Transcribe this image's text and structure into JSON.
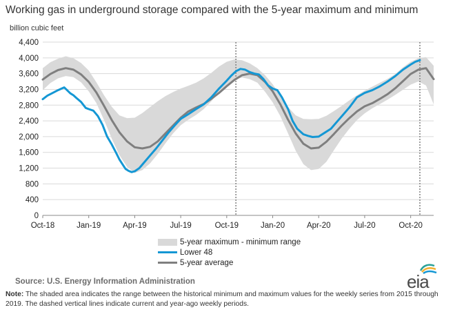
{
  "title": "Working gas in underground  storage compared with the 5-year maximum and minimum",
  "unit_label": "billion cubic feet",
  "source": "Source:  U.S. Energy Information Administration",
  "note_label": "Note:",
  "note_text": " The shaded area indicates the range between the historical minimum and maximum values for the weekly series from 2015 through 2019. The dashed vertical lines indicate current and year-ago weekly periods.",
  "logo_text": "eia",
  "colors": {
    "range": "#d9d9d9",
    "lower48": "#1497d4",
    "average": "#7f7f7f",
    "grid": "#d9d9d9",
    "dashed": "#7f7f7f"
  },
  "chart_data": {
    "type": "area",
    "ylabel": "billion cubic feet",
    "ylim": [
      0,
      4400
    ],
    "yticks": [
      0,
      400,
      800,
      1200,
      1600,
      2000,
      2400,
      2800,
      3200,
      3600,
      4000,
      4400
    ],
    "ytick_labels": [
      "0",
      "400",
      "800",
      "1,200",
      "1,600",
      "2,000",
      "2,400",
      "2,800",
      "3,200",
      "3,600",
      "4,000",
      "4,400"
    ],
    "x_unit": "months since Oct-18",
    "xlim": [
      0,
      25.5
    ],
    "xticks": [
      0,
      3,
      6,
      9,
      12,
      15,
      18,
      21,
      24
    ],
    "xtick_labels": [
      "Oct-18",
      "Jan-19",
      "Apr-19",
      "Jul-19",
      "Oct-19",
      "Jan-20",
      "Apr-20",
      "Jul-20",
      "Oct-20"
    ],
    "grid": true,
    "dashed_vlines": [
      12.6,
      24.6
    ],
    "legend_position": "bottom-center",
    "legend": [
      "5-year maximum - minimum range",
      "Lower 48",
      "5-year average"
    ],
    "series": [
      {
        "name": "5-year maximum - minimum range",
        "kind": "band",
        "x": [
          0,
          0.5,
          1,
          1.5,
          2,
          2.5,
          3,
          3.5,
          4,
          4.5,
          5,
          5.5,
          6,
          6.5,
          7,
          7.5,
          8,
          8.5,
          9,
          9.5,
          10,
          10.5,
          11,
          11.5,
          12,
          12.5,
          13,
          13.5,
          14,
          14.5,
          15,
          15.5,
          16,
          16.5,
          17,
          17.5,
          18,
          18.5,
          19,
          19.5,
          20,
          20.5,
          21,
          21.5,
          22,
          22.5,
          23,
          23.5,
          24,
          24.5,
          25,
          25.5
        ],
        "upper": [
          3740,
          3890,
          3980,
          4040,
          3990,
          3870,
          3680,
          3380,
          3050,
          2760,
          2540,
          2470,
          2480,
          2600,
          2750,
          2900,
          3030,
          3130,
          3220,
          3290,
          3370,
          3480,
          3620,
          3780,
          3900,
          3960,
          3940,
          3860,
          3740,
          3560,
          3330,
          3040,
          2750,
          2540,
          2450,
          2440,
          2450,
          2530,
          2650,
          2780,
          2920,
          3050,
          3170,
          3270,
          3370,
          3470,
          3590,
          3760,
          3900,
          3990,
          4020,
          3800
        ],
        "lower": [
          3180,
          3360,
          3480,
          3540,
          3510,
          3380,
          3150,
          2850,
          2420,
          1950,
          1530,
          1230,
          1080,
          1150,
          1320,
          1560,
          1830,
          2080,
          2290,
          2430,
          2550,
          2700,
          2900,
          3120,
          3300,
          3440,
          3500,
          3460,
          3370,
          3140,
          2870,
          2520,
          2080,
          1640,
          1300,
          1150,
          1180,
          1360,
          1660,
          1950,
          2200,
          2420,
          2590,
          2720,
          2830,
          2940,
          3060,
          3190,
          3320,
          3400,
          3300,
          2820
        ]
      },
      {
        "name": "Lower 48",
        "kind": "line",
        "x": [
          0,
          0.3,
          0.6,
          1,
          1.4,
          1.8,
          2,
          2.2,
          2.5,
          2.8,
          3,
          3.3,
          3.6,
          3.9,
          4.2,
          4.5,
          4.8,
          5,
          5.2,
          5.4,
          5.6,
          5.8,
          6,
          6.3,
          6.6,
          7,
          7.4,
          7.8,
          8.2,
          8.6,
          9,
          9.5,
          10,
          10.5,
          11,
          11.5,
          12,
          12.3,
          12.6,
          12.9,
          13.2,
          13.5,
          13.8,
          14.1,
          14.4,
          14.7,
          15,
          15.3,
          15.6,
          16,
          16.3,
          16.6,
          17,
          17.3,
          17.6,
          18,
          18.4,
          18.8,
          19.2,
          19.6,
          20,
          20.5,
          21,
          21.5,
          22,
          22.5,
          23,
          23.5,
          24,
          24.3,
          24.6
        ],
        "y": [
          2950,
          3040,
          3100,
          3180,
          3250,
          3100,
          3050,
          2980,
          2880,
          2730,
          2700,
          2660,
          2520,
          2300,
          2000,
          1800,
          1580,
          1420,
          1300,
          1180,
          1130,
          1100,
          1120,
          1200,
          1340,
          1520,
          1700,
          1900,
          2100,
          2280,
          2450,
          2570,
          2700,
          2820,
          3000,
          3220,
          3420,
          3550,
          3660,
          3720,
          3700,
          3640,
          3600,
          3580,
          3460,
          3300,
          3220,
          3180,
          3000,
          2700,
          2400,
          2200,
          2060,
          2020,
          1990,
          2000,
          2100,
          2200,
          2380,
          2560,
          2740,
          3000,
          3110,
          3180,
          3280,
          3400,
          3540,
          3700,
          3830,
          3900,
          3940
        ]
      },
      {
        "name": "5-year average",
        "kind": "line",
        "x": [
          0,
          0.5,
          1,
          1.5,
          2,
          2.5,
          3,
          3.5,
          4,
          4.5,
          5,
          5.5,
          6,
          6.5,
          7,
          7.5,
          8,
          8.5,
          9,
          9.5,
          10,
          10.5,
          11,
          11.5,
          12,
          12.5,
          13,
          13.5,
          14,
          14.5,
          15,
          15.5,
          16,
          16.5,
          17,
          17.5,
          18,
          18.5,
          19,
          19.5,
          20,
          20.5,
          21,
          21.5,
          22,
          22.5,
          23,
          23.5,
          24,
          24.5,
          25,
          25.5
        ],
        "y": [
          3450,
          3590,
          3690,
          3740,
          3700,
          3580,
          3390,
          3120,
          2780,
          2420,
          2110,
          1880,
          1730,
          1700,
          1740,
          1880,
          2080,
          2280,
          2480,
          2640,
          2740,
          2830,
          2960,
          3110,
          3280,
          3440,
          3560,
          3600,
          3560,
          3390,
          3150,
          2820,
          2430,
          2080,
          1820,
          1700,
          1720,
          1870,
          2070,
          2280,
          2470,
          2640,
          2770,
          2850,
          2960,
          3080,
          3230,
          3410,
          3590,
          3700,
          3740,
          3460
        ]
      }
    ]
  }
}
